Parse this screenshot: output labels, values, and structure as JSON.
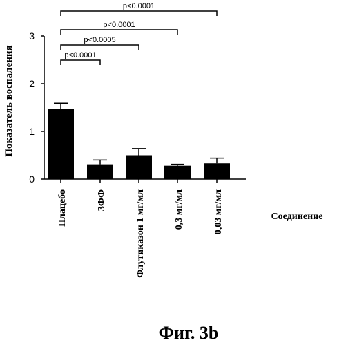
{
  "chart_data": {
    "type": "bar",
    "ylabel": "Показатель воспаления",
    "xlabel": "Соединение",
    "caption": "Фиг. 3b",
    "ylim": [
      0,
      3
    ],
    "yticks": [
      "0",
      "1",
      "2",
      "3"
    ],
    "categories": [
      "Плацебо",
      "ЗФФ",
      "Флутиказон 1 мг/мл",
      "0,3 мг/мл",
      "0,03 мг/мл"
    ],
    "values": [
      1.47,
      0.31,
      0.5,
      0.28,
      0.33
    ],
    "errors": [
      0.12,
      0.09,
      0.14,
      0.03,
      0.11
    ],
    "bar_color": "#000000",
    "significance": [
      {
        "from": 0,
        "to": 1,
        "label": "p<0.0001"
      },
      {
        "from": 0,
        "to": 2,
        "label": "p<0.0005"
      },
      {
        "from": 0,
        "to": 3,
        "label": "p<0.0001"
      },
      {
        "from": 0,
        "to": 4,
        "label": "p<0.0001"
      }
    ]
  }
}
